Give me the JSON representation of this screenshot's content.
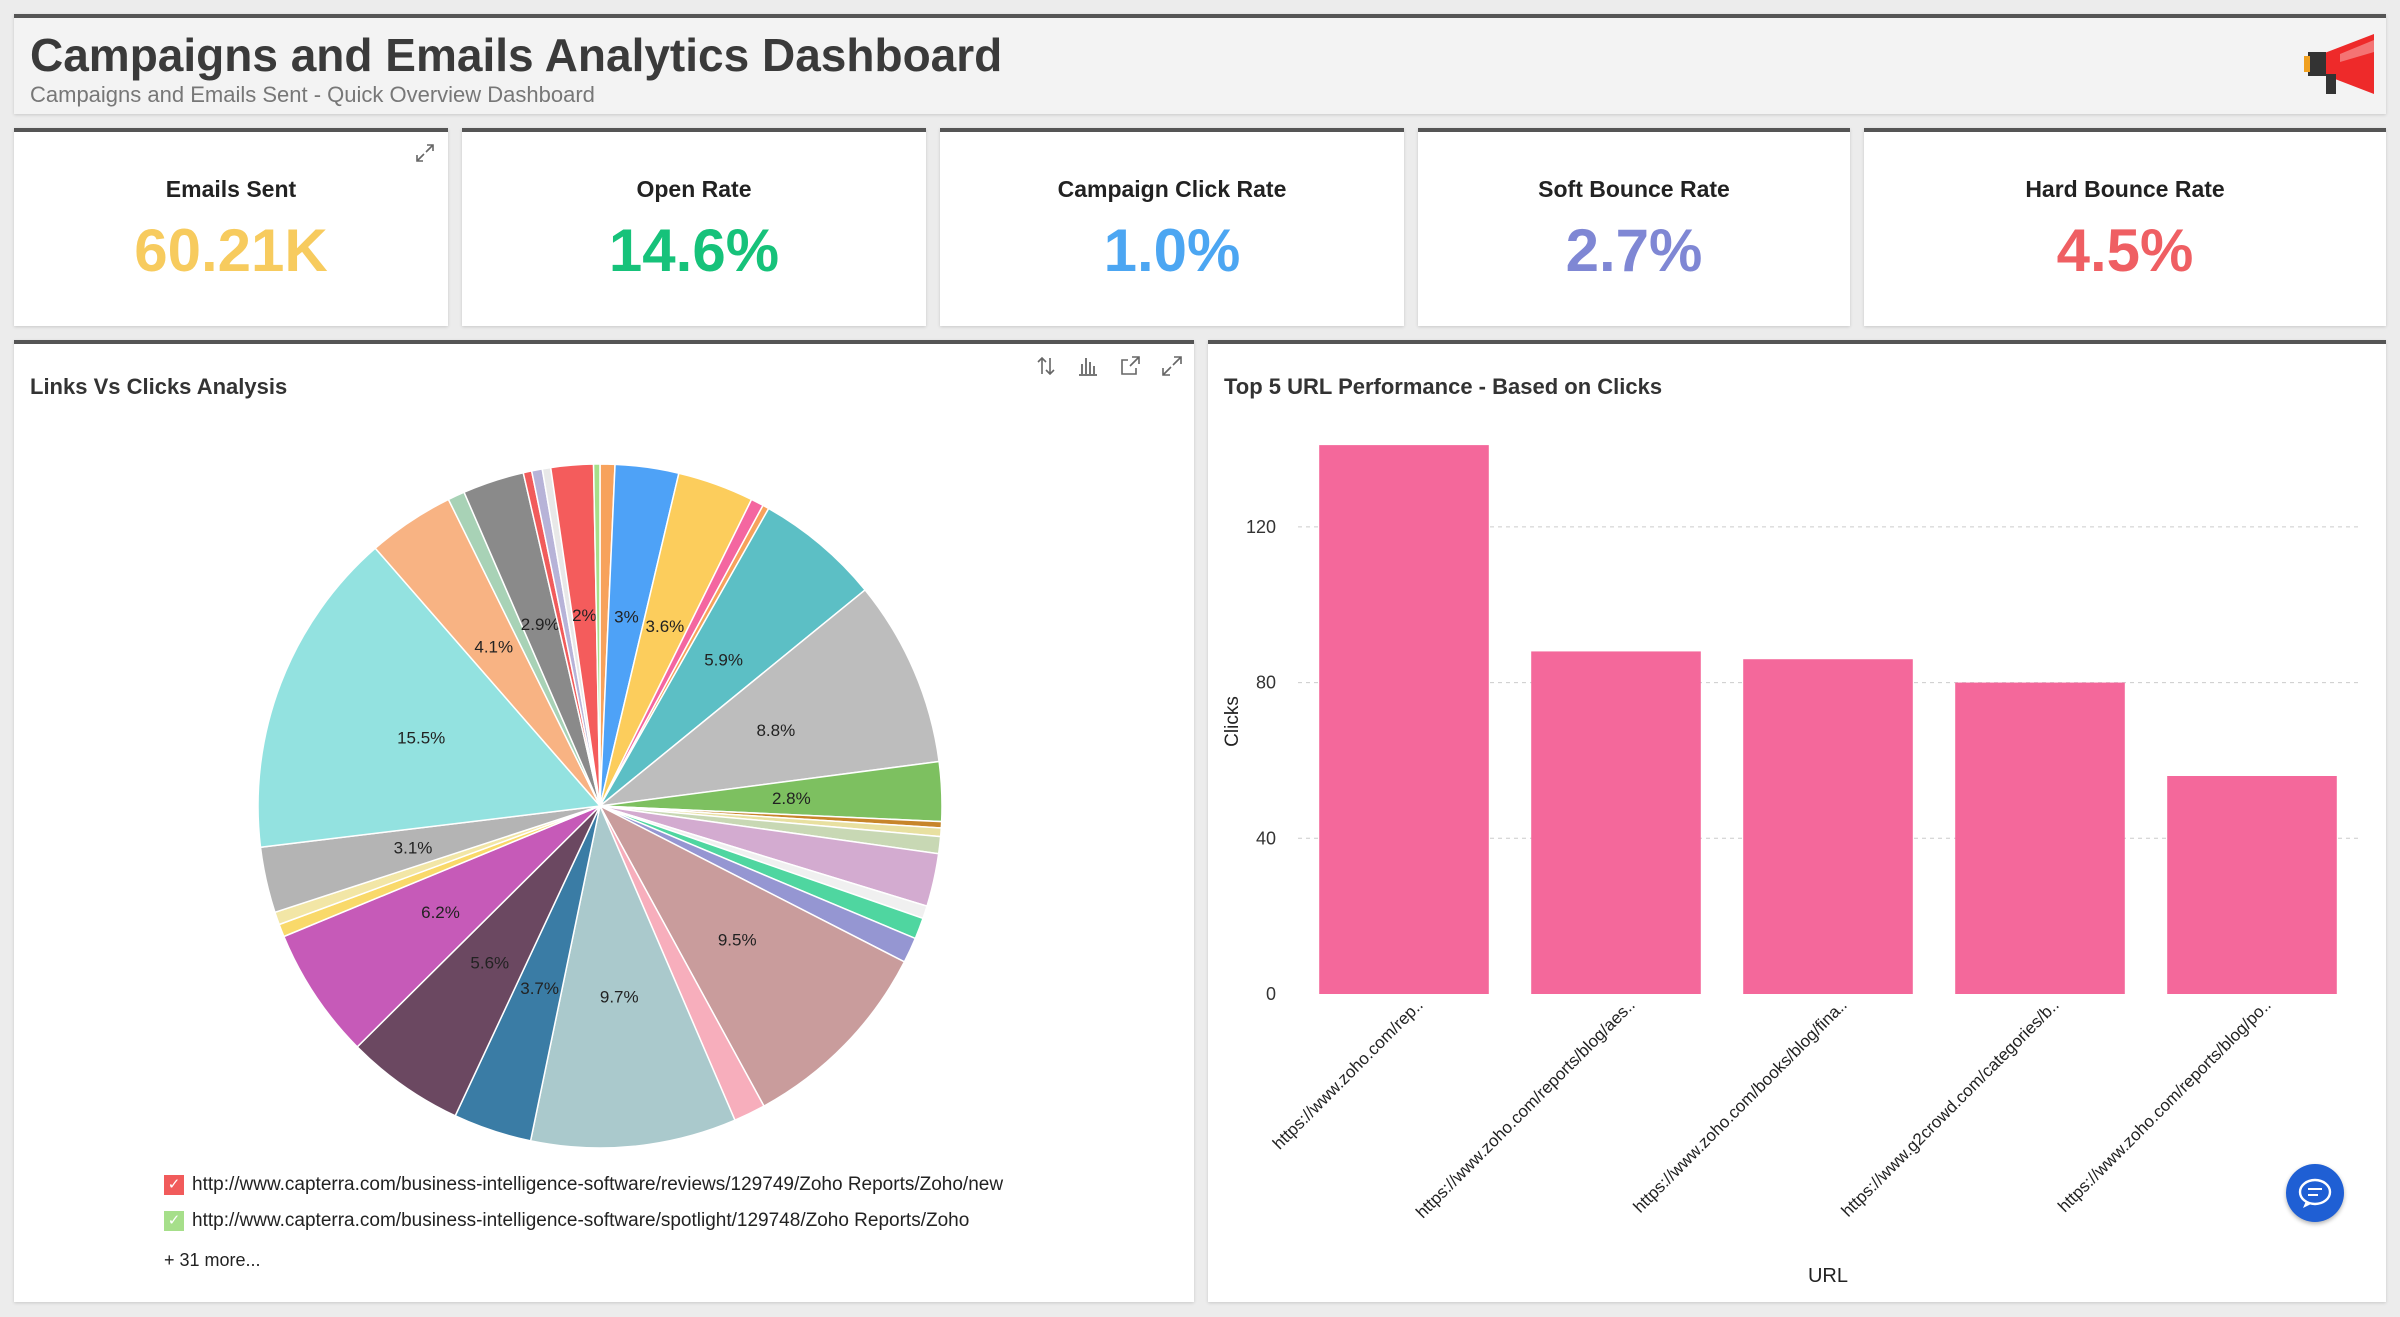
{
  "header": {
    "title": "Campaigns and Emails Analytics Dashboard",
    "subtitle": "Campaigns and Emails Sent - Quick Overview Dashboard",
    "logo_icon": "megaphone-icon"
  },
  "kpis": [
    {
      "label": "Emails Sent",
      "value": "60.21K",
      "color": "#f7cb5e"
    },
    {
      "label": "Open Rate",
      "value": "14.6%",
      "color": "#16c27a"
    },
    {
      "label": "Campaign Click Rate",
      "value": "1.0%",
      "color": "#4ca6f2"
    },
    {
      "label": "Soft Bounce Rate",
      "value": "2.7%",
      "color": "#7f87d4"
    },
    {
      "label": "Hard Bounce Rate",
      "value": "4.5%",
      "color": "#ef5f63"
    }
  ],
  "pie_panel": {
    "title": "Links Vs Clicks Analysis",
    "legend": [
      {
        "label": "http://www.capterra.com/business-intelligence-software/reviews/129749/Zoho Reports/Zoho/new",
        "color": "#f15b5b"
      },
      {
        "label": "http://www.capterra.com/business-intelligence-software/spotlight/129748/Zoho Reports/Zoho",
        "color": "#a6df8a"
      }
    ],
    "more": "+ 31 more..."
  },
  "bar_panel": {
    "title": "Top 5 URL Performance - Based on Clicks"
  },
  "chart_data": [
    {
      "type": "pie",
      "title": "Links Vs Clicks Analysis",
      "slices": [
        {
          "value": 0.7,
          "label": "",
          "color": "#f7a25c"
        },
        {
          "value": 3.0,
          "label": "3%",
          "color": "#4ea2f7"
        },
        {
          "value": 3.6,
          "label": "3.6%",
          "color": "#fccd5c"
        },
        {
          "value": 0.6,
          "label": "",
          "color": "#f466a0"
        },
        {
          "value": 0.3,
          "label": "",
          "color": "#f7a25c"
        },
        {
          "value": 5.9,
          "label": "5.9%",
          "color": "#5cbfc5"
        },
        {
          "value": 8.8,
          "label": "8.8%",
          "color": "#bdbdbd"
        },
        {
          "value": 2.8,
          "label": "2.8%",
          "color": "#7dc060"
        },
        {
          "value": 0.3,
          "label": "",
          "color": "#c7852a"
        },
        {
          "value": 0.4,
          "label": "",
          "color": "#e8e0a0"
        },
        {
          "value": 0.8,
          "label": "",
          "color": "#c8d8b4"
        },
        {
          "value": 2.5,
          "label": "",
          "color": "#d3abd0"
        },
        {
          "value": 0.6,
          "label": "",
          "color": "#f0f0f0"
        },
        {
          "value": 1.0,
          "label": "",
          "color": "#4fd6a0"
        },
        {
          "value": 1.2,
          "label": "",
          "color": "#9596d2"
        },
        {
          "value": 9.5,
          "label": "9.5%",
          "color": "#c99c9c"
        },
        {
          "value": 1.5,
          "label": "",
          "color": "#f7aebc"
        },
        {
          "value": 9.7,
          "label": "9.7%",
          "color": "#aac9cc"
        },
        {
          "value": 3.7,
          "label": "3.7%",
          "color": "#3a7ca5"
        },
        {
          "value": 5.6,
          "label": "5.6%",
          "color": "#6b4861"
        },
        {
          "value": 6.2,
          "label": "6.2%",
          "color": "#c65ab8"
        },
        {
          "value": 0.6,
          "label": "",
          "color": "#f9d96a"
        },
        {
          "value": 0.6,
          "label": "",
          "color": "#f2e6a6"
        },
        {
          "value": 3.1,
          "label": "3.1%",
          "color": "#b4b4b4"
        },
        {
          "value": 15.5,
          "label": "15.5%",
          "color": "#93e2e0"
        },
        {
          "value": 4.1,
          "label": "4.1%",
          "color": "#f8b383"
        },
        {
          "value": 0.8,
          "label": "",
          "color": "#a8d2b6"
        },
        {
          "value": 2.9,
          "label": "2.9%",
          "color": "#8a8a8a"
        },
        {
          "value": 0.4,
          "label": "",
          "color": "#f15b5b"
        },
        {
          "value": 0.5,
          "label": "",
          "color": "#b7b3d8"
        },
        {
          "value": 0.4,
          "label": "",
          "color": "#e8e8e8"
        },
        {
          "value": 2.0,
          "label": "2%",
          "color": "#f45c5c"
        },
        {
          "value": 0.3,
          "label": "",
          "color": "#a6df8a"
        }
      ]
    },
    {
      "type": "bar",
      "title": "Top 5 URL Performance - Based on Clicks",
      "xlabel": "URL",
      "ylabel": "Clicks",
      "ylim": [
        0,
        140
      ],
      "yticks": [
        0,
        40,
        80,
        120
      ],
      "categories": [
        "https://www.zoho.com/rep..",
        "https://www.zoho.com/reports/blog/aes..",
        "https://www.zoho.com/books/blog/fina..",
        "https://www.g2crowd.com/categories/b..",
        "https://www.zoho.com/reports/blog/po.."
      ],
      "values": [
        141,
        88,
        86,
        80,
        56
      ],
      "color": "#f4689b"
    }
  ]
}
